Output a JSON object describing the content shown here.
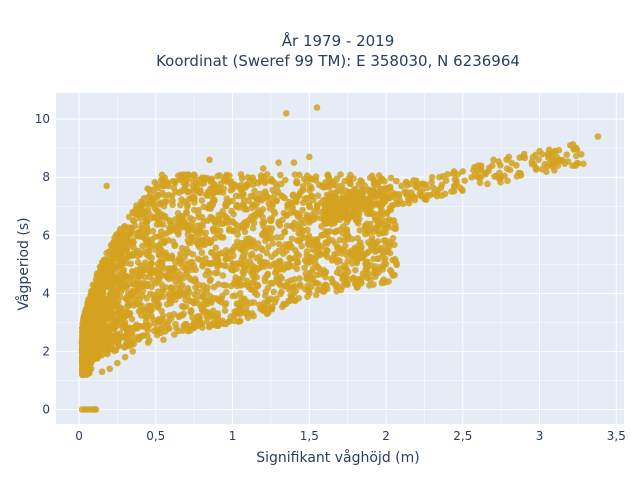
{
  "chart_data": {
    "type": "scatter",
    "title_line1": "År 1979 - 2019",
    "title_line2": "Koordinat (Sweref 99 TM): E 358030, N 6236964",
    "xlabel": "Signifikant våghöjd (m)",
    "ylabel": "Vågperiod (s)",
    "xlim": [
      -0.15,
      3.55
    ],
    "ylim": [
      -0.5,
      10.9
    ],
    "x_ticks": [
      0,
      0.5,
      1,
      1.5,
      2,
      2.5,
      3,
      3.5
    ],
    "x_tick_labels": [
      "0",
      "0,5",
      "1",
      "1,5",
      "2",
      "2,5",
      "3",
      "3,5"
    ],
    "y_ticks": [
      0,
      2,
      4,
      6,
      8,
      10
    ],
    "y_tick_labels": [
      "0",
      "2",
      "4",
      "6",
      "8",
      "10"
    ],
    "grid": true,
    "colors": {
      "marker": "#D4A21F",
      "plot_bg": "#E5ECF6",
      "grid": "#ffffff"
    },
    "series": [
      {
        "values": [
          [
            0.02,
            0
          ],
          [
            0.04,
            0
          ],
          [
            0.06,
            0
          ],
          [
            0.08,
            0
          ],
          [
            0.1,
            0
          ],
          [
            0.11,
            0
          ],
          [
            0.05,
            1.2
          ],
          [
            0.08,
            1.4
          ],
          [
            0.1,
            1.8
          ],
          [
            0.15,
            2.2
          ],
          [
            0.2,
            2.5
          ],
          [
            0.25,
            2.9
          ],
          [
            0.1,
            3.5
          ],
          [
            0.15,
            4.2
          ],
          [
            0.2,
            5.0
          ],
          [
            0.25,
            5.8
          ],
          [
            0.3,
            6.3
          ],
          [
            0.35,
            6.8
          ],
          [
            0.3,
            3.0
          ],
          [
            0.4,
            3.4
          ],
          [
            0.5,
            3.8
          ],
          [
            0.6,
            4.2
          ],
          [
            0.7,
            4.8
          ],
          [
            0.8,
            5.4
          ],
          [
            0.4,
            4.8
          ],
          [
            0.5,
            5.5
          ],
          [
            0.6,
            6.2
          ],
          [
            0.7,
            6.8
          ],
          [
            0.8,
            7.2
          ],
          [
            0.9,
            7.5
          ],
          [
            0.55,
            2.4
          ],
          [
            0.65,
            2.7
          ],
          [
            0.75,
            3.0
          ],
          [
            0.85,
            3.2
          ],
          [
            0.95,
            3.6
          ],
          [
            1.05,
            4.0
          ],
          [
            1.0,
            5.0
          ],
          [
            1.1,
            5.6
          ],
          [
            1.2,
            6.0
          ],
          [
            1.3,
            6.4
          ],
          [
            1.4,
            6.8
          ],
          [
            1.5,
            7.0
          ],
          [
            1.0,
            7.6
          ],
          [
            1.1,
            8.0
          ],
          [
            1.2,
            8.3
          ],
          [
            1.3,
            8.5
          ],
          [
            1.4,
            8.5
          ],
          [
            1.5,
            8.7
          ],
          [
            1.6,
            6.8
          ],
          [
            1.7,
            7.0
          ],
          [
            1.8,
            7.3
          ],
          [
            1.9,
            7.5
          ],
          [
            2.0,
            7.6
          ],
          [
            2.1,
            7.7
          ],
          [
            2.2,
            7.8
          ],
          [
            2.3,
            8.0
          ],
          [
            2.4,
            8.1
          ],
          [
            2.5,
            8.2
          ],
          [
            2.6,
            8.4
          ],
          [
            2.7,
            8.6
          ],
          [
            2.8,
            8.7
          ],
          [
            2.9,
            8.8
          ],
          [
            3.0,
            8.9
          ],
          [
            3.1,
            8.9
          ],
          [
            3.2,
            9.1
          ],
          [
            3.38,
            9.4
          ],
          [
            1.35,
            10.2
          ],
          [
            1.55,
            10.4
          ],
          [
            0.18,
            7.7
          ],
          [
            0.85,
            8.6
          ],
          [
            1.3,
            4.4
          ],
          [
            1.5,
            4.7
          ],
          [
            1.6,
            4.7
          ],
          [
            1.75,
            5.1
          ],
          [
            1.8,
            4.8
          ],
          [
            1.95,
            5.2
          ],
          [
            1.2,
            3.4
          ],
          [
            1.4,
            4.0
          ],
          [
            0.25,
            1.6
          ],
          [
            0.35,
            2.0
          ],
          [
            0.45,
            2.3
          ],
          [
            0.15,
            1.3
          ],
          [
            0.3,
            1.8
          ],
          [
            0.2,
            1.4
          ]
        ]
      }
    ]
  }
}
